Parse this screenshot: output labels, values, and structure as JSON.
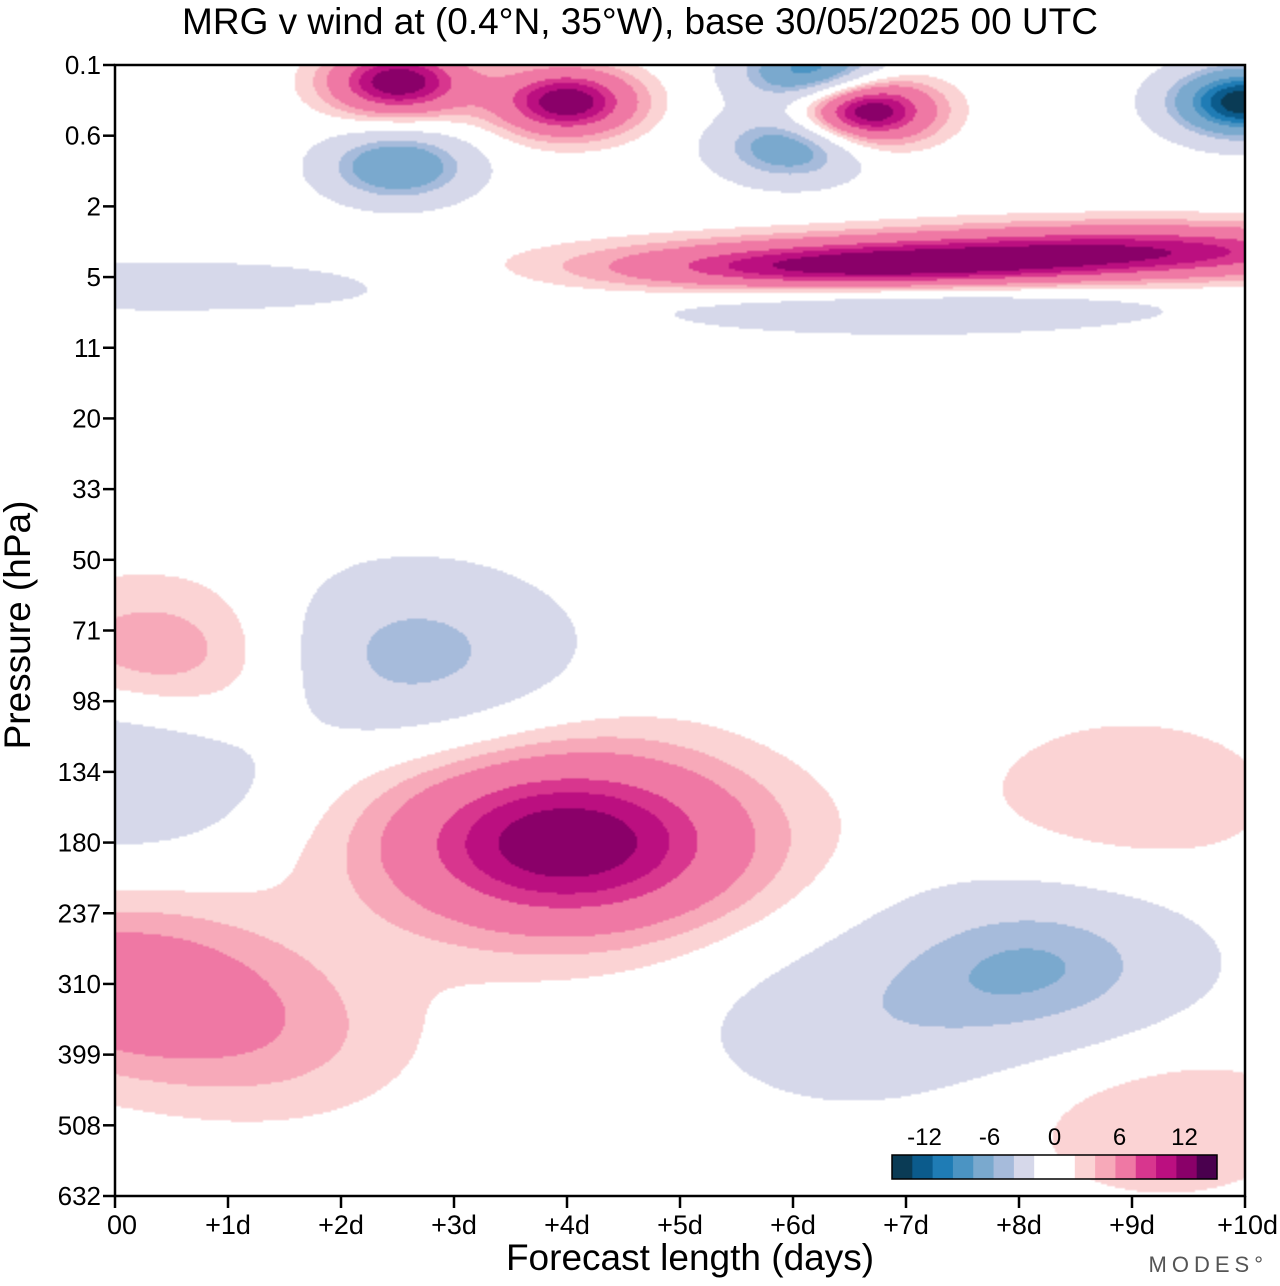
{
  "chart_data": {
    "type": "heatmap",
    "title": "MRG v wind at (0.4°N, 35°W),  base 30/05/2025  00 UTC",
    "xlabel": "Forecast length (days)",
    "ylabel": "Pressure (hPa)",
    "x_ticks": [
      "00",
      "+1d",
      "+2d",
      "+3d",
      "+4d",
      "+5d",
      "+6d",
      "+7d",
      "+8d",
      "+9d",
      "+10d"
    ],
    "x_range_days": [
      0,
      10
    ],
    "y_ticks": [
      "0.1",
      "0.6",
      "2",
      "5",
      "11",
      "20",
      "33",
      "50",
      "71",
      "98",
      "134",
      "180",
      "237",
      "310",
      "399",
      "508",
      "632"
    ],
    "y_tick_values_hPa": [
      0.1,
      0.6,
      2,
      5,
      11,
      20,
      33,
      50,
      71,
      98,
      134,
      180,
      237,
      310,
      399,
      508,
      632
    ],
    "y_range_hPa": [
      0.1,
      632
    ],
    "y_axis": "model levels, top (0.1 hPa) to bottom (632 hPa), pressure increasing downward",
    "grid": false,
    "colorbar": {
      "placement": "bottom-right",
      "tick_labels": [
        "-12",
        "-6",
        "0",
        "6",
        "12"
      ],
      "tick_values": [
        -12,
        -6,
        0,
        6,
        12
      ],
      "levels": [
        -15,
        -13.5,
        -12,
        -10.5,
        -9,
        -7.5,
        -6,
        -4.5,
        -3,
        -1.5,
        1.5,
        3,
        4.5,
        6,
        7.5,
        9,
        10.5,
        12,
        13.5,
        15
      ],
      "colors": [
        "#0a3b55",
        "#0b5b8c",
        "#1f7cb5",
        "#4b94c3",
        "#7aa9ce",
        "#a6bbdb",
        "#d6d8ea",
        "#ffffff",
        "#ffffff",
        "#fbd3d4",
        "#f7a9b9",
        "#ef78a4",
        "#d8368e",
        "#bb0f80",
        "#8a0069",
        "#4a004e"
      ]
    },
    "features": [
      {
        "sign": "positive",
        "peak_m_s": 12,
        "x_days": 4.0,
        "p_hPa": 180
      },
      {
        "sign": "positive",
        "peak_m_s": 6,
        "x_days": 0.0,
        "p_hPa": 310
      },
      {
        "sign": "positive",
        "peak_m_s": 6,
        "x_days": 0.5,
        "p_hPa": 85
      },
      {
        "sign": "positive",
        "peak_m_s": 3,
        "x_days": 1.4,
        "p_hPa": 380
      },
      {
        "sign": "positive",
        "peak_m_s": 3,
        "x_days": 9.3,
        "p_hPa": 500
      },
      {
        "sign": "positive",
        "peak_m_s": 3,
        "x_days": 9.0,
        "p_hPa": 150
      },
      {
        "sign": "negative",
        "peak_m_s": -6,
        "x_days": 2.5,
        "p_hPa": 80
      },
      {
        "sign": "negative",
        "peak_m_s": -6,
        "x_days": 0.0,
        "p_hPa": 125
      },
      {
        "sign": "negative",
        "peak_m_s": -6,
        "x_days": 8.2,
        "p_hPa": 290
      },
      {
        "sign": "negative",
        "peak_m_s": -3,
        "x_days": 6.5,
        "p_hPa": 360
      },
      {
        "sign": "positive",
        "peak_m_s": 12,
        "x_days": 6.5,
        "p_hPa": 4.5
      },
      {
        "sign": "positive",
        "peak_m_s": 9,
        "x_days": 9.2,
        "p_hPa": 3.5
      },
      {
        "sign": "positive",
        "peak_m_s": 12,
        "x_days": 4.0,
        "p_hPa": 0.25
      },
      {
        "sign": "positive",
        "peak_m_s": 12,
        "x_days": 2.5,
        "p_hPa": 0.15
      },
      {
        "sign": "positive",
        "peak_m_s": 15,
        "x_days": 6.6,
        "p_hPa": 0.3
      },
      {
        "sign": "negative",
        "peak_m_s": -12,
        "x_days": 6.2,
        "p_hPa": 0.12
      },
      {
        "sign": "negative",
        "peak_m_s": -15,
        "x_days": 10.0,
        "p_hPa": 0.25
      },
      {
        "sign": "negative",
        "peak_m_s": -9,
        "x_days": 2.5,
        "p_hPa": 1.0
      },
      {
        "sign": "negative",
        "peak_m_s": -9,
        "x_days": 6.0,
        "p_hPa": 0.7
      },
      {
        "sign": "negative",
        "peak_m_s": -6,
        "x_days": 7.0,
        "p_hPa": 6.5
      },
      {
        "sign": "negative",
        "peak_m_s": -3,
        "x_days": 0.5,
        "p_hPa": 5.5
      }
    ]
  },
  "watermark": "MODES°"
}
